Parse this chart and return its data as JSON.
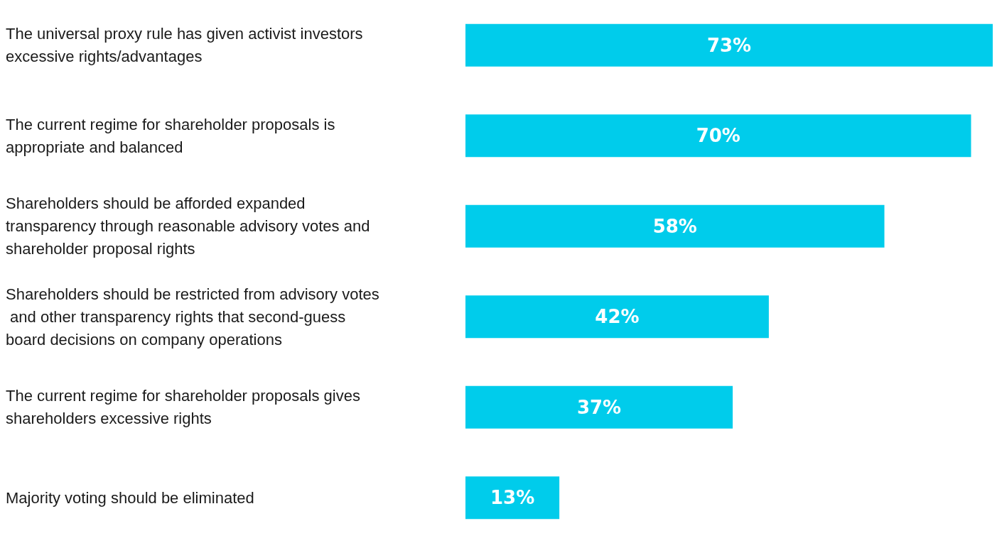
{
  "chart_data": {
    "type": "bar",
    "orientation": "horizontal",
    "categories": [
      "The universal proxy rule has given activist investors excessive rights/advantages",
      "The current regime for shareholder proposals is appropriate and balanced",
      "Shareholders should be afforded expanded transparency through reasonable advisory votes and shareholder proposal rights",
      "Shareholders should be restricted from advisory votes and other transparency rights that second-guess board decisions on company operations",
      "The current regime for shareholder proposals gives shareholders excessive rights",
      "Majority voting should be eliminated"
    ],
    "values": [
      73,
      70,
      58,
      42,
      37,
      13
    ],
    "value_labels": [
      "73%",
      "70%",
      "58%",
      "42%",
      "37%",
      "13%"
    ],
    "color": "#00cceb"
  }
}
